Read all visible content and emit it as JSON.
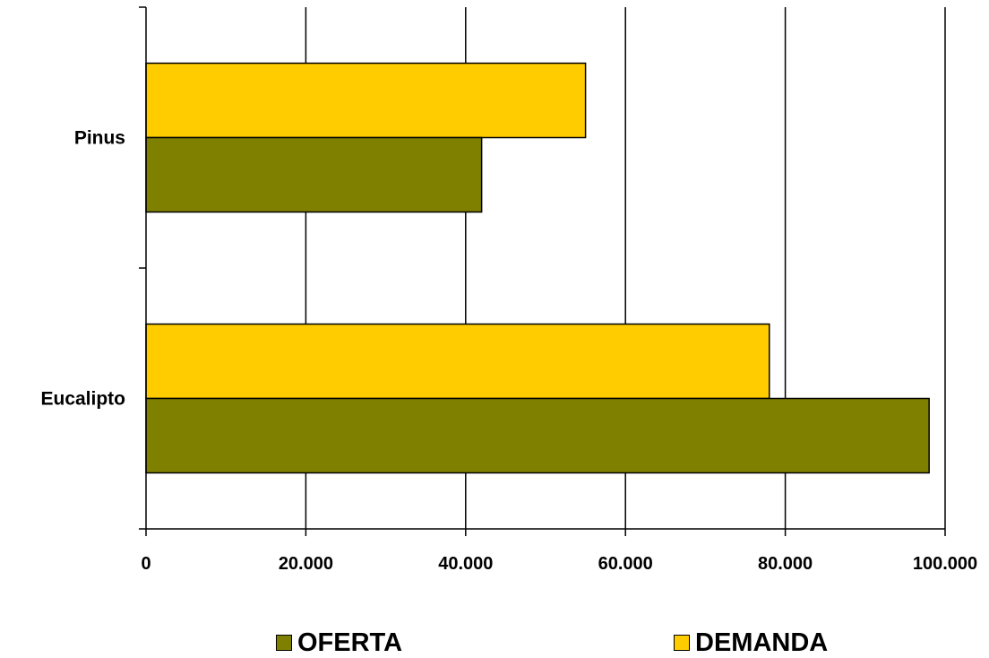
{
  "chart_data": {
    "type": "bar",
    "orientation": "horizontal",
    "title": "",
    "xlabel": "",
    "ylabel": "",
    "categories": [
      "Pinus",
      "Eucalipto"
    ],
    "series": [
      {
        "name": "OFERTA",
        "color": "#808000",
        "values": [
          42000,
          98000
        ]
      },
      {
        "name": "DEMANDA",
        "color": "#FFCC00",
        "values": [
          55000,
          78000
        ]
      }
    ],
    "xlim": [
      0,
      100000
    ],
    "x_ticks": [
      0,
      20000,
      40000,
      60000,
      80000,
      100000
    ],
    "x_tick_labels": [
      "0",
      "20.000",
      "40.000",
      "60.000",
      "80.000",
      "100.000"
    ],
    "grid": "vertical",
    "legend_position": "bottom"
  }
}
